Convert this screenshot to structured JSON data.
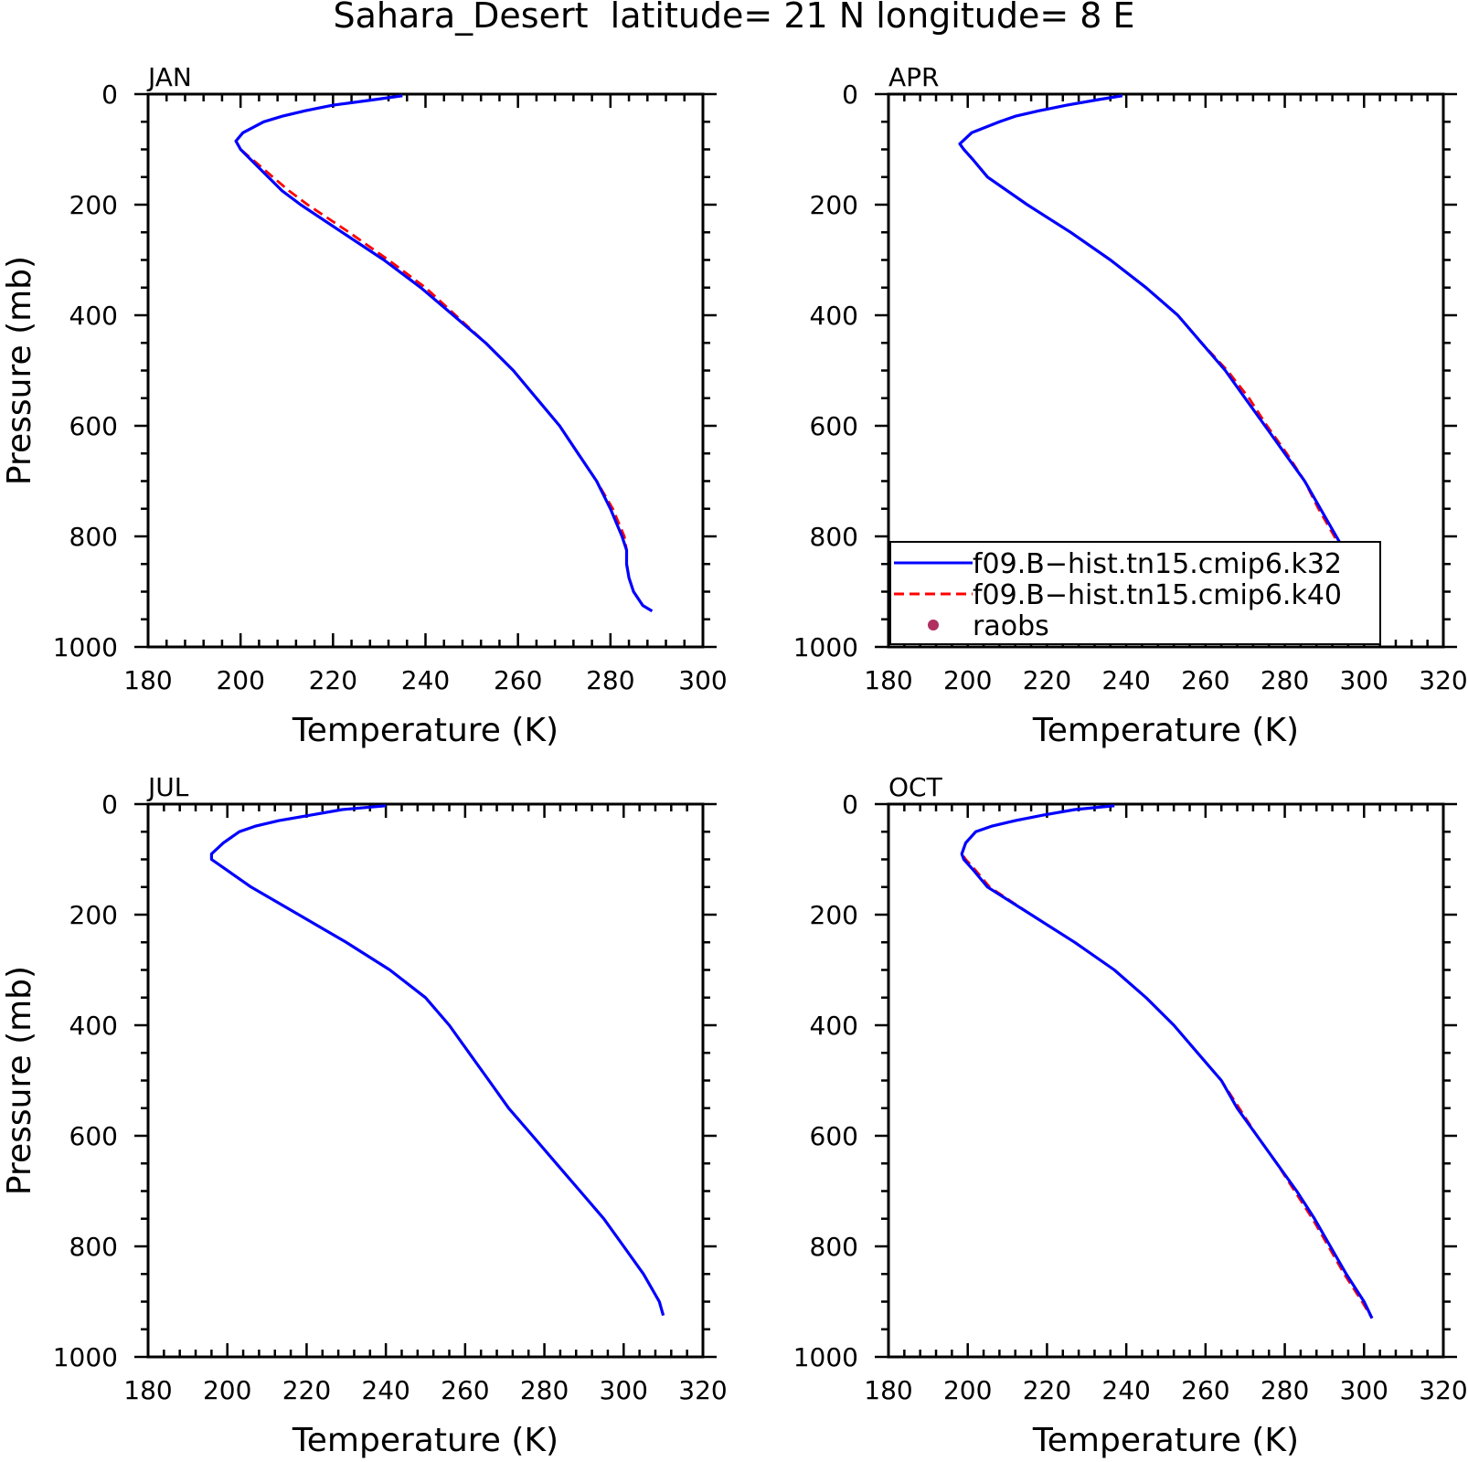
{
  "figure": {
    "title": "Sahara_Desert  latitude= 21 N longitude= 8 E"
  },
  "legend": {
    "entries": [
      {
        "label": "f09.B−hist.tn15.cmip6.k32",
        "style": "solid",
        "color": "#0000ff"
      },
      {
        "label": "f09.B−hist.tn15.cmip6.k40",
        "style": "dashed",
        "color": "#ff0000"
      },
      {
        "label": "raobs",
        "style": "marker",
        "color": "#b03060"
      }
    ]
  },
  "chart_data": [
    {
      "type": "line",
      "panel": "JAN",
      "xlabel": "Temperature (K)",
      "ylabel": "Pressure (mb)",
      "xlim": [
        180,
        300
      ],
      "ylim": [
        1000,
        0
      ],
      "xticks": [
        180,
        200,
        220,
        240,
        260,
        280,
        300
      ],
      "yticks": [
        0,
        200,
        400,
        600,
        800,
        1000
      ],
      "y": [
        3,
        10,
        20,
        30,
        40,
        50,
        70,
        85,
        100,
        125,
        150,
        175,
        200,
        250,
        300,
        350,
        400,
        450,
        500,
        550,
        600,
        650,
        700,
        750,
        800,
        825,
        850,
        875,
        900,
        925,
        935
      ],
      "series": [
        {
          "name": "f09.B−hist.tn15.cmip6.k32",
          "style": "solid",
          "color": "#0000ff",
          "x": [
            235,
            229,
            220,
            214,
            209,
            205,
            200.5,
            199,
            200,
            203,
            206,
            209,
            213,
            222,
            231,
            239,
            246,
            253,
            259,
            264,
            269,
            273,
            277,
            280,
            282.5,
            283.5,
            283.5,
            284,
            285,
            287,
            289
          ]
        },
        {
          "name": "f09.B−hist.tn15.cmip6.k40",
          "style": "dashed",
          "color": "#ff0000",
          "x": [
            235,
            229,
            220,
            214,
            209,
            205,
            200.5,
            199,
            200,
            203.5,
            207,
            210.5,
            214.5,
            223.5,
            232,
            240,
            246.5,
            253,
            259,
            264,
            269,
            273,
            277,
            280.5,
            283,
            283.5,
            283.5,
            284,
            285,
            287,
            289
          ]
        }
      ]
    },
    {
      "type": "line",
      "panel": "APR",
      "xlabel": "Temperature (K)",
      "ylabel": "",
      "xlim": [
        180,
        320
      ],
      "ylim": [
        1000,
        0
      ],
      "xticks": [
        180,
        200,
        220,
        240,
        260,
        280,
        300,
        320
      ],
      "yticks": [
        0,
        200,
        400,
        600,
        800,
        1000
      ],
      "y": [
        3,
        10,
        20,
        30,
        40,
        50,
        70,
        90,
        100,
        120,
        150,
        200,
        250,
        300,
        350,
        400,
        450,
        500,
        550,
        600,
        650,
        700,
        750,
        800,
        850,
        900,
        925
      ],
      "series": [
        {
          "name": "f09.B−hist.tn15.cmip6.k32",
          "style": "solid",
          "color": "#0000ff",
          "x": [
            239,
            233,
            225,
            218,
            212,
            208,
            201,
            198,
            199,
            201.5,
            205,
            215,
            226,
            236,
            245,
            253,
            259,
            265,
            270,
            275,
            280,
            285,
            289,
            293,
            297,
            301,
            304
          ]
        },
        {
          "name": "f09.B−hist.tn15.cmip6.k40",
          "style": "dashed",
          "color": "#ff0000",
          "x": [
            239,
            233,
            225,
            218,
            212,
            208,
            201,
            198,
            199,
            201.5,
            205,
            215,
            226,
            236,
            245,
            253,
            259,
            265.5,
            271,
            275.5,
            280.5,
            285,
            288.5,
            292.5,
            296.5,
            300.5,
            303.5
          ]
        }
      ]
    },
    {
      "type": "line",
      "panel": "JUL",
      "xlabel": "Temperature (K)",
      "ylabel": "Pressure (mb)",
      "xlim": [
        180,
        320
      ],
      "ylim": [
        1000,
        0
      ],
      "xticks": [
        180,
        200,
        220,
        240,
        260,
        280,
        300,
        320
      ],
      "yticks": [
        0,
        200,
        400,
        600,
        800,
        1000
      ],
      "y": [
        3,
        10,
        20,
        30,
        40,
        50,
        70,
        90,
        100,
        120,
        150,
        200,
        250,
        300,
        350,
        400,
        450,
        500,
        550,
        600,
        650,
        700,
        750,
        800,
        850,
        900,
        925
      ],
      "series": [
        {
          "name": "f09.B−hist.tn15.cmip6.k32",
          "style": "solid",
          "color": "#0000ff",
          "x": [
            240,
            229,
            221,
            213,
            207,
            203,
            199,
            196,
            196,
            200,
            206,
            218,
            230,
            241,
            250,
            256,
            261,
            266,
            271,
            277,
            283,
            289,
            295,
            300,
            305,
            309,
            310
          ]
        },
        {
          "name": "f09.B−hist.tn15.cmip6.k40",
          "style": "dashed",
          "color": "#ff0000",
          "x": [
            240,
            229,
            221,
            213,
            207,
            203,
            199,
            196,
            196,
            200,
            206,
            218,
            230,
            241,
            250,
            256,
            261,
            266,
            271,
            277,
            283,
            289,
            295,
            300,
            305,
            309,
            310
          ]
        }
      ]
    },
    {
      "type": "line",
      "panel": "OCT",
      "xlabel": "Temperature (K)",
      "ylabel": "",
      "xlim": [
        180,
        320
      ],
      "ylim": [
        1000,
        0
      ],
      "xticks": [
        180,
        200,
        220,
        240,
        260,
        280,
        300,
        320
      ],
      "yticks": [
        0,
        200,
        400,
        600,
        800,
        1000
      ],
      "y": [
        3,
        10,
        20,
        30,
        40,
        50,
        70,
        90,
        100,
        120,
        150,
        200,
        250,
        300,
        350,
        400,
        450,
        500,
        550,
        600,
        650,
        700,
        750,
        800,
        850,
        900,
        930
      ],
      "series": [
        {
          "name": "f09.B−hist.tn15.cmip6.k32",
          "style": "solid",
          "color": "#0000ff",
          "x": [
            237,
            227,
            219,
            212,
            206,
            202,
            199.5,
            198.5,
            199,
            201.5,
            205,
            216,
            227,
            237,
            245,
            252,
            258,
            264,
            268,
            273,
            278,
            283,
            287.5,
            291.5,
            295.5,
            300,
            302
          ]
        },
        {
          "name": "f09.B−hist.tn15.cmip6.k40",
          "style": "dashed",
          "color": "#ff0000",
          "x": [
            237,
            227,
            219,
            212,
            206,
            202,
            199.5,
            198.5,
            199.5,
            202,
            205.5,
            216,
            227,
            237,
            245,
            252,
            258,
            264,
            268.5,
            273,
            278,
            282.5,
            287,
            291,
            295,
            299.5,
            302
          ]
        }
      ]
    }
  ]
}
